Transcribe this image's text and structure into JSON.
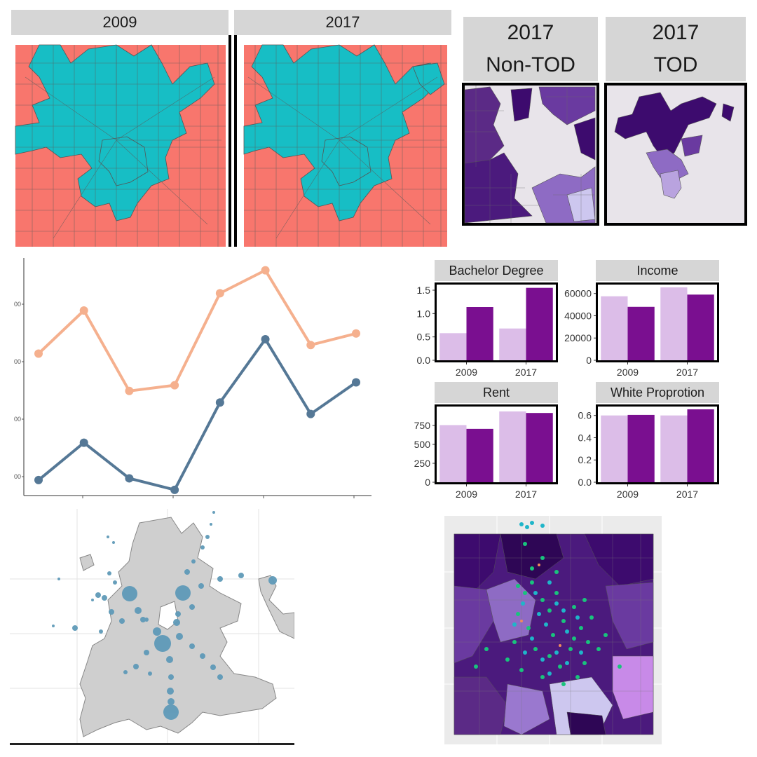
{
  "maps_top": {
    "left_panels": [
      "2009",
      "2017"
    ],
    "right_panels": [
      {
        "line1": "2017",
        "line2": "Non-TOD"
      },
      {
        "line1": "2017",
        "line2": "TOD"
      }
    ]
  },
  "colors": {
    "tod_cyan": "#17bec5",
    "non_tod_red": "#f8766d",
    "light_purple": "#dcbde8",
    "dark_purple": "#7a0f90",
    "line_orange": "#f5b08e",
    "line_blue": "#557896",
    "bubble_blue": "#5f9ab8",
    "map_grey": "#cfcfcf"
  },
  "chart_data": [
    {
      "type": "line",
      "title": "",
      "xlabel": "",
      "ylabel": "",
      "x": [
        1,
        2,
        3,
        4,
        5,
        6,
        7,
        8
      ],
      "ytick_labels": [
        "00",
        "00",
        "00",
        "00"
      ],
      "ylim": [
        0,
        3.7
      ],
      "series": [
        {
          "name": "orange",
          "values": [
            2.25,
            3.0,
            1.6,
            1.7,
            3.3,
            3.7,
            2.4,
            2.6
          ]
        },
        {
          "name": "blue",
          "values": [
            0.05,
            0.7,
            0.08,
            -0.12,
            1.4,
            2.5,
            1.2,
            1.75
          ]
        }
      ]
    },
    {
      "type": "bar",
      "title": "Bachelor Degree",
      "categories": [
        "2009",
        "2017"
      ],
      "series": [
        {
          "name": "light",
          "values": [
            0.58,
            0.68
          ]
        },
        {
          "name": "dark",
          "values": [
            1.14,
            1.55
          ]
        }
      ],
      "yticks": [
        0.0,
        0.5,
        1.0,
        1.5
      ],
      "ytick_labels": [
        "0.0",
        "0.5",
        "1.0",
        "1.5"
      ],
      "ylim": [
        0,
        1.62
      ]
    },
    {
      "type": "bar",
      "title": "Income",
      "categories": [
        "2009",
        "2017"
      ],
      "series": [
        {
          "name": "light",
          "values": [
            57500,
            65500
          ]
        },
        {
          "name": "dark",
          "values": [
            48000,
            59000
          ]
        }
      ],
      "yticks": [
        0,
        20000,
        40000,
        60000
      ],
      "ytick_labels": [
        "0",
        "20000",
        "40000",
        "60000"
      ],
      "ylim": [
        0,
        68000
      ]
    },
    {
      "type": "bar",
      "title": "Rent",
      "categories": [
        "2009",
        "2017"
      ],
      "series": [
        {
          "name": "light",
          "values": [
            755,
            935
          ]
        },
        {
          "name": "dark",
          "values": [
            705,
            915
          ]
        }
      ],
      "yticks": [
        0,
        250,
        500,
        750
      ],
      "ytick_labels": [
        "0",
        "250",
        "500",
        "750"
      ],
      "ylim": [
        0,
        1000
      ]
    },
    {
      "type": "bar",
      "title": "White Proprotion",
      "categories": [
        "2009",
        "2017"
      ],
      "series": [
        {
          "name": "light",
          "values": [
            0.6,
            0.6
          ]
        },
        {
          "name": "dark",
          "values": [
            0.605,
            0.655
          ]
        }
      ],
      "yticks": [
        0.0,
        0.2,
        0.4,
        0.6
      ],
      "ytick_labels": [
        "0.0",
        "0.2",
        "0.4",
        "0.6"
      ],
      "ylim": [
        0,
        0.68
      ]
    }
  ]
}
